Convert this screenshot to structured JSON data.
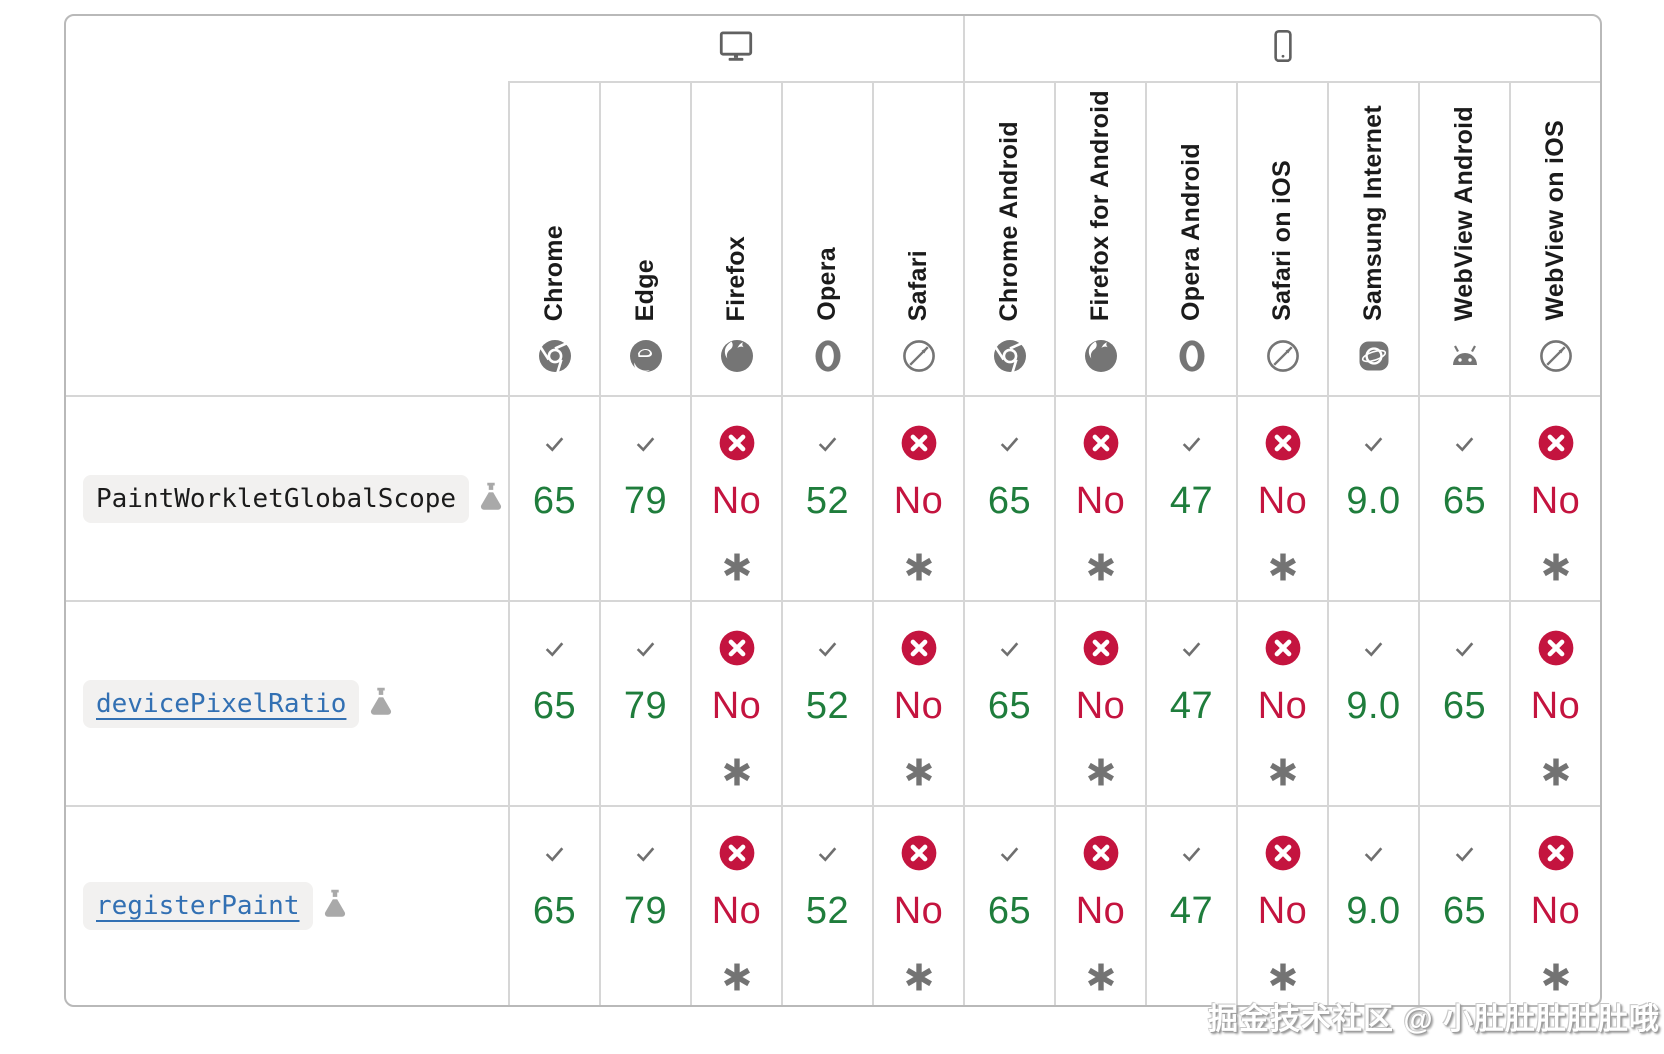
{
  "watermark": "掘金技术社区 @ 小肚肚肚肚肚哦",
  "colors": {
    "supported_green": "#1f7d3c",
    "unsupported_red": "#c4143f",
    "link_blue": "#3270b3",
    "icon_gray": "#757575",
    "grid_line_gray": "#d6d6d6"
  },
  "table": {
    "groups": [
      {
        "id": "desktop",
        "icon": "desktop-icon"
      },
      {
        "id": "mobile",
        "icon": "mobile-icon"
      }
    ],
    "browsers": [
      {
        "id": "chrome",
        "label": "Chrome",
        "icon": "chrome-icon"
      },
      {
        "id": "edge",
        "label": "Edge",
        "icon": "edge-icon"
      },
      {
        "id": "firefox",
        "label": "Firefox",
        "icon": "firefox-icon"
      },
      {
        "id": "opera",
        "label": "Opera",
        "icon": "opera-icon"
      },
      {
        "id": "safari",
        "label": "Safari",
        "icon": "safari-icon"
      },
      {
        "id": "chrome-android",
        "label": "Chrome Android",
        "icon": "chrome-icon"
      },
      {
        "id": "firefox-android",
        "label": "Firefox for Android",
        "icon": "firefox-icon"
      },
      {
        "id": "opera-android",
        "label": "Opera Android",
        "icon": "opera-icon"
      },
      {
        "id": "safari-ios",
        "label": "Safari on iOS",
        "icon": "safari-icon"
      },
      {
        "id": "samsung-internet",
        "label": "Samsung Internet",
        "icon": "samsung-icon"
      },
      {
        "id": "webview-android",
        "label": "WebView Android",
        "icon": "android-icon"
      },
      {
        "id": "webview-ios",
        "label": "WebView on iOS",
        "icon": "safari-icon"
      }
    ],
    "rows": [
      {
        "feature": "PaintWorkletGlobalScope",
        "link": false,
        "experimental": true,
        "support": [
          {
            "supported": true,
            "version": "65"
          },
          {
            "supported": true,
            "version": "79"
          },
          {
            "supported": false,
            "version": "No",
            "footnote": true
          },
          {
            "supported": true,
            "version": "52"
          },
          {
            "supported": false,
            "version": "No",
            "footnote": true
          },
          {
            "supported": true,
            "version": "65"
          },
          {
            "supported": false,
            "version": "No",
            "footnote": true
          },
          {
            "supported": true,
            "version": "47"
          },
          {
            "supported": false,
            "version": "No",
            "footnote": true
          },
          {
            "supported": true,
            "version": "9.0"
          },
          {
            "supported": true,
            "version": "65"
          },
          {
            "supported": false,
            "version": "No",
            "footnote": true
          }
        ]
      },
      {
        "feature": "devicePixelRatio",
        "link": true,
        "experimental": true,
        "support": [
          {
            "supported": true,
            "version": "65"
          },
          {
            "supported": true,
            "version": "79"
          },
          {
            "supported": false,
            "version": "No",
            "footnote": true
          },
          {
            "supported": true,
            "version": "52"
          },
          {
            "supported": false,
            "version": "No",
            "footnote": true
          },
          {
            "supported": true,
            "version": "65"
          },
          {
            "supported": false,
            "version": "No",
            "footnote": true
          },
          {
            "supported": true,
            "version": "47"
          },
          {
            "supported": false,
            "version": "No",
            "footnote": true
          },
          {
            "supported": true,
            "version": "9.0"
          },
          {
            "supported": true,
            "version": "65"
          },
          {
            "supported": false,
            "version": "No",
            "footnote": true
          }
        ]
      },
      {
        "feature": "registerPaint",
        "link": true,
        "experimental": true,
        "support": [
          {
            "supported": true,
            "version": "65"
          },
          {
            "supported": true,
            "version": "79"
          },
          {
            "supported": false,
            "version": "No",
            "footnote": true
          },
          {
            "supported": true,
            "version": "52"
          },
          {
            "supported": false,
            "version": "No",
            "footnote": true
          },
          {
            "supported": true,
            "version": "65"
          },
          {
            "supported": false,
            "version": "No",
            "footnote": true
          },
          {
            "supported": true,
            "version": "47"
          },
          {
            "supported": false,
            "version": "No",
            "footnote": true
          },
          {
            "supported": true,
            "version": "9.0"
          },
          {
            "supported": true,
            "version": "65"
          },
          {
            "supported": false,
            "version": "No",
            "footnote": true
          }
        ]
      }
    ]
  }
}
